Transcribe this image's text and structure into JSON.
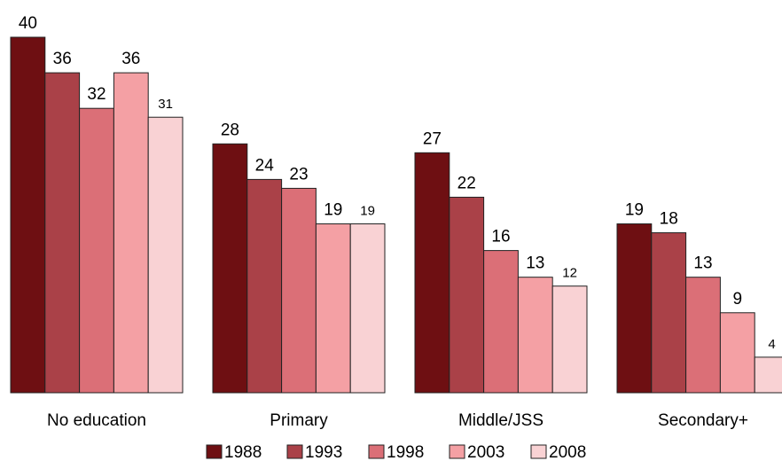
{
  "chart_data": {
    "type": "bar",
    "categories": [
      "No education",
      "Primary",
      "Middle/JSS",
      "Secondary+"
    ],
    "series": [
      {
        "name": "1988",
        "values": [
          40,
          28,
          27,
          19
        ],
        "color": "#6e0f12"
      },
      {
        "name": "1993",
        "values": [
          36,
          24,
          22,
          18
        ],
        "color": "#aa4148"
      },
      {
        "name": "1998",
        "values": [
          32,
          23,
          16,
          13
        ],
        "color": "#db6f77"
      },
      {
        "name": "2003",
        "values": [
          36,
          19,
          13,
          9
        ],
        "color": "#f4a0a4"
      },
      {
        "name": "2008",
        "values": [
          31,
          19,
          12,
          4
        ],
        "color": "#f9d2d4"
      }
    ],
    "title": "",
    "xlabel": "",
    "ylabel": "",
    "ylim": [
      0,
      40
    ],
    "grid": false,
    "legend_position": "bottom"
  }
}
